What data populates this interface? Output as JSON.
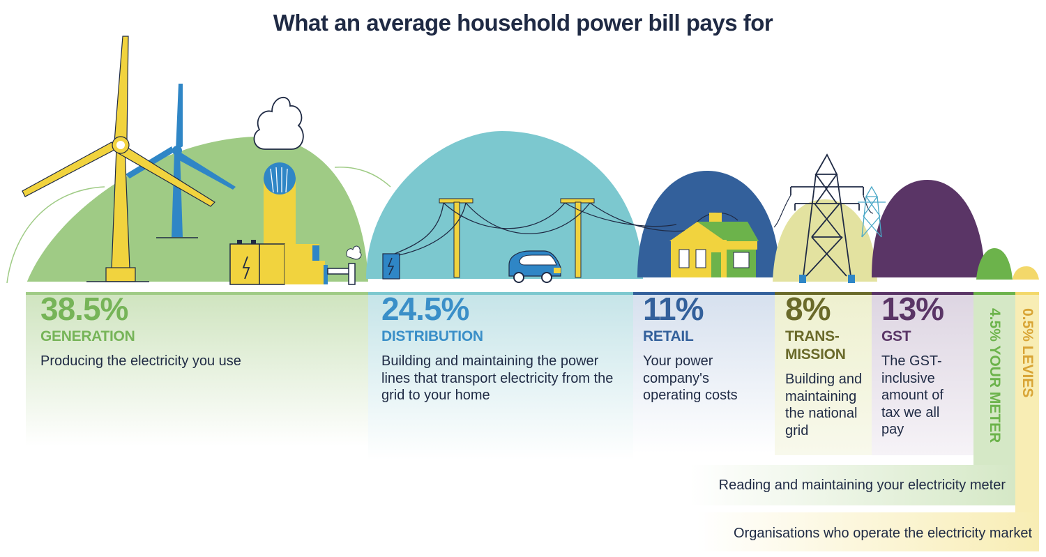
{
  "title": "What an average household power bill pays for",
  "colors": {
    "generation": "#76b458",
    "distribution": "#3a8fc8",
    "retail": "#33609b",
    "transmission": "#6a6a2a",
    "gst": "#5a3566",
    "meter": "#6cb34b",
    "levies": "#d8a435",
    "navy": "#1f2a44"
  },
  "segments": [
    {
      "id": "generation",
      "percent": "38.5%",
      "name": "GENERATION",
      "description": "Producing the electricity you use"
    },
    {
      "id": "distribution",
      "percent": "24.5%",
      "name": "DISTRIBUTION",
      "description": "Building and maintaining the power lines that transport electricity from the grid to your home"
    },
    {
      "id": "retail",
      "percent": "11%",
      "name": "RETAIL",
      "description": "Your power company's operating costs"
    },
    {
      "id": "transmission",
      "percent": "8%",
      "name": "TRANS-\nMISSION",
      "description": "Building and maintaining the national grid"
    },
    {
      "id": "gst",
      "percent": "13%",
      "name": "GST",
      "description": "The GST-inclusive amount of tax we all pay"
    }
  ],
  "meter": {
    "label": "4.5% YOUR METER",
    "description": "Reading and maintaining your electricity meter"
  },
  "levies": {
    "label": "0.5% LEVIES",
    "description": "Organisations who operate the electricity market"
  }
}
